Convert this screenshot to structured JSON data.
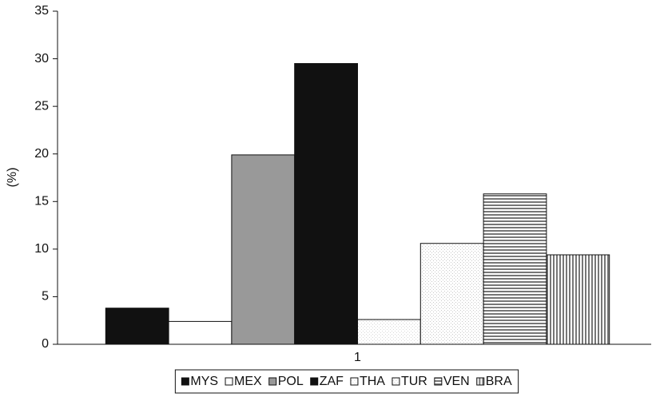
{
  "chart_data": {
    "type": "bar",
    "y_label": "(%)",
    "categories": [
      "1"
    ],
    "series": [
      {
        "name": "MYS",
        "color": "#111111",
        "pattern": "solid",
        "values": [
          3.8
        ]
      },
      {
        "name": "MEX",
        "color": "#ffffff",
        "pattern": "solid",
        "values": [
          2.4
        ]
      },
      {
        "name": "POL",
        "color": "#999999",
        "pattern": "solid",
        "values": [
          19.9
        ]
      },
      {
        "name": "ZAF",
        "color": "#111111",
        "pattern": "solid",
        "values": [
          29.5
        ]
      },
      {
        "name": "THA",
        "color": "#d8d8d8",
        "pattern": "dots",
        "values": [
          2.6
        ]
      },
      {
        "name": "TUR",
        "color": "#c8c8c8",
        "pattern": "dots",
        "values": [
          10.6
        ]
      },
      {
        "name": "VEN",
        "color": "#777777",
        "pattern": "hlines",
        "values": [
          15.8
        ]
      },
      {
        "name": "BRA",
        "color": "#777777",
        "pattern": "vlines",
        "values": [
          9.4
        ]
      }
    ],
    "ylim": [
      0,
      35
    ],
    "yticks": [
      0,
      5,
      10,
      15,
      20,
      25,
      30,
      35
    ],
    "legend": "bottom"
  }
}
